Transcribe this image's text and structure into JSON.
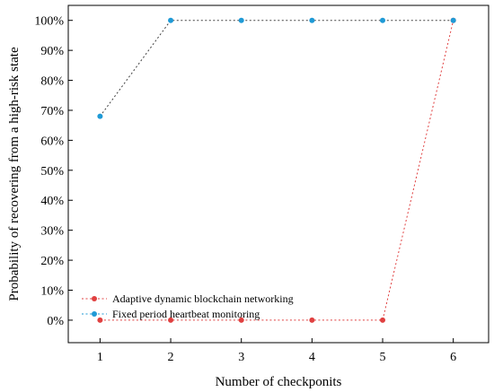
{
  "chart_data": {
    "type": "line",
    "title": "",
    "xlabel": "Number of checkponits",
    "ylabel": "Probability of recovering from a high-risk state",
    "x": [
      1,
      2,
      3,
      4,
      5,
      6
    ],
    "xlim": [
      0.55,
      6.5
    ],
    "ylim": [
      -0.075,
      1.05
    ],
    "xticks": [
      "1",
      "2",
      "3",
      "4",
      "5",
      "6"
    ],
    "yticks": [
      {
        "value": 0.0,
        "label": "0%"
      },
      {
        "value": 0.1,
        "label": "10%"
      },
      {
        "value": 0.2,
        "label": "20%"
      },
      {
        "value": 0.3,
        "label": "30%"
      },
      {
        "value": 0.4,
        "label": "40%"
      },
      {
        "value": 0.5,
        "label": "50%"
      },
      {
        "value": 0.6,
        "label": "60%"
      },
      {
        "value": 0.7,
        "label": "70%"
      },
      {
        "value": 0.8,
        "label": "80%"
      },
      {
        "value": 0.9,
        "label": "90%"
      },
      {
        "value": 1.0,
        "label": "100%"
      }
    ],
    "grid": false,
    "legend_position": "bottom-left",
    "series": [
      {
        "name": "Adaptive dynamic blockchain networking",
        "values": [
          0,
          0,
          0,
          0,
          0,
          1.0
        ],
        "color": "#e04040",
        "line_style": "dotted"
      },
      {
        "name": "Fixed period heartbeat monitoring",
        "values": [
          0.68,
          1.0,
          1.0,
          1.0,
          1.0,
          1.0
        ],
        "color": "#1f9ad6",
        "line_color": "#444444",
        "line_style": "dotted"
      }
    ]
  }
}
